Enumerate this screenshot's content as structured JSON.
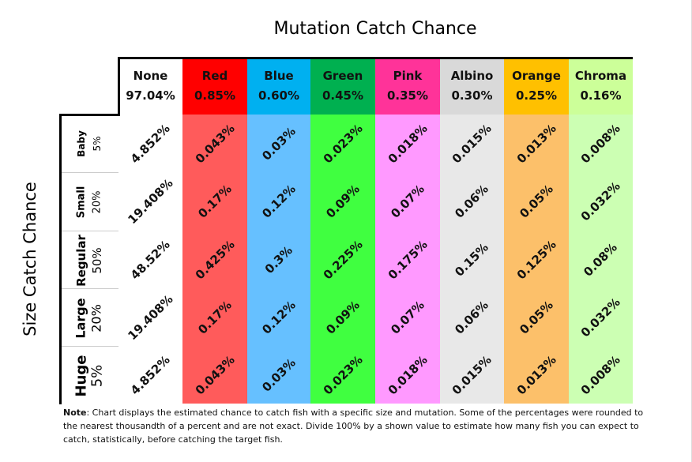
{
  "chart_data": {
    "type": "table",
    "title": "Mutation Catch Chance",
    "ylabel": "Size Catch Chance",
    "columns": [
      {
        "name": "None",
        "chance": "97.04%",
        "header_color": "#ffffff",
        "body_color": "#ffffff"
      },
      {
        "name": "Red",
        "chance": "0.85%",
        "header_color": "#ff0000",
        "body_color": "#ff5b5b"
      },
      {
        "name": "Blue",
        "chance": "0.60%",
        "header_color": "#00b0f0",
        "body_color": "#66c0ff"
      },
      {
        "name": "Green",
        "chance": "0.45%",
        "header_color": "#00b050",
        "body_color": "#40ff40"
      },
      {
        "name": "Pink",
        "chance": "0.35%",
        "header_color": "#ff3399",
        "body_color": "#ff99ff"
      },
      {
        "name": "Albino",
        "chance": "0.30%",
        "header_color": "#d9d9d9",
        "body_color": "#e8e8e8"
      },
      {
        "name": "Orange",
        "chance": "0.25%",
        "header_color": "#ffc000",
        "body_color": "#fcc06a"
      },
      {
        "name": "Chroma",
        "chance": "0.16%",
        "header_color": "#ccff99",
        "body_color": "#ccffb3"
      }
    ],
    "rows": [
      {
        "name": "Baby",
        "chance": "5%",
        "values": [
          "4.852%",
          "0.043%",
          "0.03%",
          "0.023%",
          "0.018%",
          "0.015%",
          "0.013%",
          "0.008%"
        ]
      },
      {
        "name": "Small",
        "chance": "20%",
        "values": [
          "19.408%",
          "0.17%",
          "0.12%",
          "0.09%",
          "0.07%",
          "0.06%",
          "0.05%",
          "0.032%"
        ]
      },
      {
        "name": "Regular",
        "chance": "50%",
        "values": [
          "48.52%",
          "0.425%",
          "0.3%",
          "0.225%",
          "0.175%",
          "0.15%",
          "0.125%",
          "0.08%"
        ]
      },
      {
        "name": "Large",
        "chance": "20%",
        "values": [
          "19.408%",
          "0.17%",
          "0.12%",
          "0.09%",
          "0.07%",
          "0.06%",
          "0.05%",
          "0.032%"
        ]
      },
      {
        "name": "Huge",
        "chance": "5%",
        "values": [
          "4.852%",
          "0.043%",
          "0.03%",
          "0.023%",
          "0.018%",
          "0.015%",
          "0.013%",
          "0.008%"
        ]
      }
    ]
  },
  "note": {
    "label": "Note",
    "text": ": Chart displays the estimated chance to catch fish with a specific size and mutation. Some of the percentages were rounded to the nearest thousandth of a percent and are not exact. Divide 100% by a shown value to estimate how many fish you can expect to catch, statistically, before catching the target fish."
  }
}
